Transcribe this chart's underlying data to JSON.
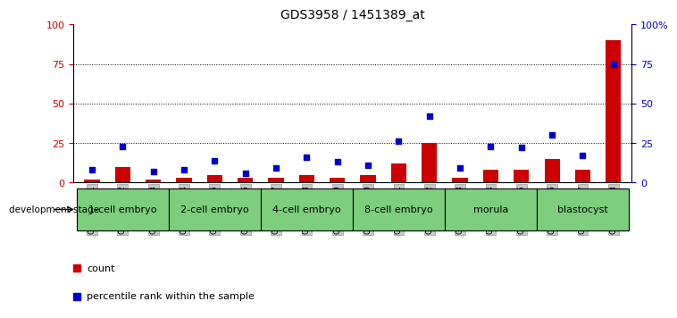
{
  "title": "GDS3958 / 1451389_at",
  "samples": [
    "GSM456661",
    "GSM456662",
    "GSM456663",
    "GSM456664",
    "GSM456665",
    "GSM456666",
    "GSM456667",
    "GSM456668",
    "GSM456669",
    "GSM456670",
    "GSM456671",
    "GSM456672",
    "GSM456673",
    "GSM456674",
    "GSM456675",
    "GSM456676",
    "GSM456677",
    "GSM456678"
  ],
  "count_values": [
    2,
    10,
    2,
    3,
    5,
    3,
    3,
    5,
    3,
    5,
    12,
    25,
    3,
    8,
    8,
    15,
    8,
    90
  ],
  "percentile_values": [
    8,
    23,
    7,
    8,
    14,
    6,
    9,
    16,
    13,
    11,
    26,
    42,
    9,
    23,
    22,
    30,
    17,
    75
  ],
  "stages": [
    {
      "label": "1-cell embryo",
      "start": 0,
      "end": 3
    },
    {
      "label": "2-cell embryo",
      "start": 3,
      "end": 6
    },
    {
      "label": "4-cell embryo",
      "start": 6,
      "end": 9
    },
    {
      "label": "8-cell embryo",
      "start": 9,
      "end": 12
    },
    {
      "label": "morula",
      "start": 12,
      "end": 15
    },
    {
      "label": "blastocyst",
      "start": 15,
      "end": 18
    }
  ],
  "bar_color": "#cc0000",
  "dot_color": "#0000cc",
  "stage_bg_color": "#7dce7d",
  "stage_border_color": "#000000",
  "tick_label_bg": "#c8c8c8",
  "ylim_left": [
    0,
    100
  ],
  "ylim_right": [
    0,
    100
  ],
  "yticks_left": [
    0,
    25,
    50,
    75,
    100
  ],
  "yticks_right": [
    0,
    25,
    50,
    75,
    100
  ],
  "ytick_labels_right": [
    "0",
    "25",
    "50",
    "75",
    "100%"
  ],
  "title_fontsize": 10,
  "tick_fontsize": 6.5,
  "stage_fontsize": 8,
  "legend_count_label": "count",
  "legend_percentile_label": "percentile rank within the sample",
  "dev_stage_label": "development stage"
}
